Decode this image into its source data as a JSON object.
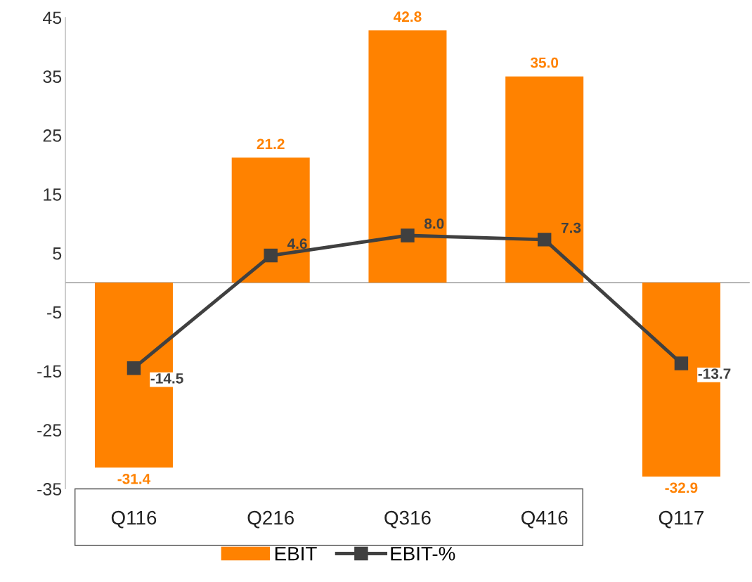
{
  "chart_data": {
    "type": "bar",
    "categories": [
      "Q116",
      "Q216",
      "Q316",
      "Q416",
      "Q117"
    ],
    "series": [
      {
        "name": "EBIT",
        "color": "#ff8200",
        "values": [
          -31.4,
          21.2,
          42.8,
          35.0,
          -32.9
        ],
        "value_labels": [
          "-31.4",
          "21.2",
          "42.8",
          "35.0",
          "-32.9"
        ]
      },
      {
        "name": "EBIT-%",
        "type": "line",
        "color": "#404040",
        "values": [
          -14.5,
          4.6,
          8.0,
          7.3,
          -13.7
        ],
        "value_labels": [
          "-14.5",
          "4.6",
          "8.0",
          "7.3",
          "-13.7"
        ]
      }
    ],
    "ylim": [
      -35,
      45
    ],
    "yticks": [
      -35,
      -25,
      -15,
      -5,
      5,
      15,
      25,
      35,
      45
    ],
    "marker": "square",
    "line_style": "solid",
    "legend": "bottom"
  }
}
